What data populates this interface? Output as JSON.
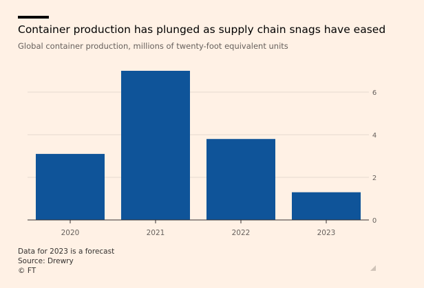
{
  "header": {
    "title": "Container production has plunged as supply chain snags have eased",
    "subtitle": "Global container production, millions of twenty-foot equivalent units"
  },
  "footer": {
    "note": "Data for 2023 is a forecast",
    "source": "Source: Drewry",
    "credit": "© FT"
  },
  "colors": {
    "background": "#fff1e5",
    "bar": "#0f5499",
    "grid": "#e6d9ce",
    "axis_text": "#66605c"
  },
  "chart_data": {
    "type": "bar",
    "title": "Container production has plunged as supply chain snags have eased",
    "subtitle": "Global container production, millions of twenty-foot equivalent units",
    "categories": [
      "2020",
      "2021",
      "2022",
      "2023"
    ],
    "values": [
      3.1,
      7.0,
      3.8,
      1.3
    ],
    "yticks": [
      0,
      2,
      4,
      6
    ],
    "ylim": [
      0,
      7.2
    ],
    "xlabel": "",
    "ylabel": "",
    "grid": true,
    "y_axis_side": "right"
  }
}
